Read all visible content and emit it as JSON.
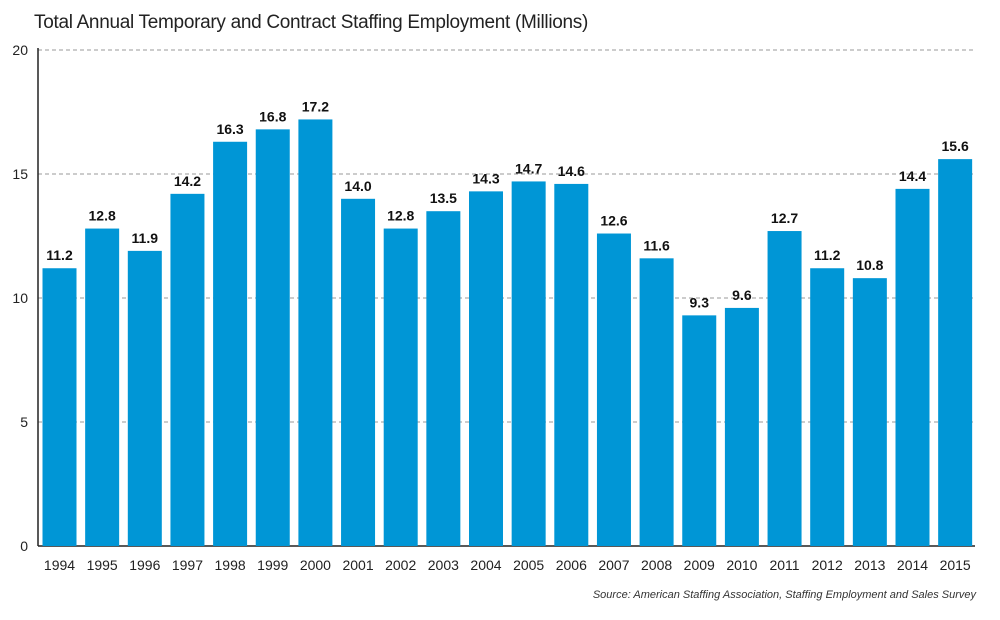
{
  "chart_data": {
    "type": "bar",
    "title": "Total Annual Temporary and Contract Staffing Employment (Millions)",
    "categories": [
      "1994",
      "1995",
      "1996",
      "1997",
      "1998",
      "1999",
      "2000",
      "2001",
      "2002",
      "2003",
      "2004",
      "2005",
      "2006",
      "2007",
      "2008",
      "2009",
      "2010",
      "2011",
      "2012",
      "2013",
      "2014",
      "2015"
    ],
    "values": [
      11.2,
      12.8,
      11.9,
      14.2,
      16.3,
      16.8,
      17.2,
      14.0,
      12.8,
      13.5,
      14.3,
      14.7,
      14.6,
      12.6,
      11.6,
      9.3,
      9.6,
      12.7,
      11.2,
      10.8,
      14.4,
      15.6
    ],
    "value_labels": [
      "11.2",
      "12.8",
      "11.9",
      "14.2",
      "16.3",
      "16.8",
      "17.2",
      "14.0",
      "12.8",
      "13.5",
      "14.3",
      "14.7",
      "14.6",
      "12.6",
      "11.6",
      "9.3",
      "9.6",
      "12.7",
      "11.2",
      "10.8",
      "14.4",
      "15.6"
    ],
    "ylim": [
      0,
      20
    ],
    "yticks": [
      0,
      5,
      10,
      15,
      20
    ],
    "ytick_labels": [
      "0",
      "5",
      "10",
      "15",
      "20"
    ],
    "xlabel": "",
    "ylabel": "",
    "grid": "horizontal dashed",
    "legend": "none",
    "bar_color": "#0096d6",
    "source": "Source: American Staffing Association, Staffing Employment and Sales Survey"
  }
}
